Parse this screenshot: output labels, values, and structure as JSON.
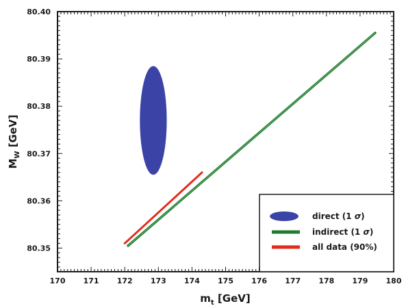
{
  "chart_data": {
    "type": "scatter",
    "title": "",
    "xlabel_main": "m",
    "xlabel_sub": "t",
    "xlabel_unit": " [GeV]",
    "ylabel_main": "M",
    "ylabel_sub": "W",
    "ylabel_unit": " [GeV]",
    "xlim": [
      170,
      180
    ],
    "ylim": [
      80.345,
      80.4
    ],
    "x_ticks": [
      "170",
      "171",
      "172",
      "173",
      "174",
      "175",
      "176",
      "177",
      "178",
      "179",
      "180"
    ],
    "y_ticks": [
      "80.35",
      "80.36",
      "80.37",
      "80.38",
      "80.39",
      "80.40"
    ],
    "y_tick_values": [
      80.35,
      80.36,
      80.37,
      80.38,
      80.39,
      80.4
    ],
    "grid": false,
    "legend_position": "bottom-right",
    "series": [
      {
        "name_prefix": "direct (1 ",
        "name_symbol": "σ",
        "name_suffix": ")",
        "shape": "ellipse",
        "color": "#3b44a6",
        "center": [
          172.85,
          80.377
        ],
        "half_width_x": 0.4,
        "half_height_y": 0.0115
      },
      {
        "name_prefix": "indirect (1 ",
        "name_symbol": "σ",
        "name_suffix": ")",
        "shape": "band",
        "color": "#1f7a2e",
        "points": [
          [
            172.1,
            80.3505
          ],
          [
            179.45,
            80.3955
          ]
        ]
      },
      {
        "name_prefix": "all data (90%)",
        "name_symbol": "",
        "name_suffix": "",
        "shape": "band",
        "color": "#e02c1c",
        "points": [
          [
            172.0,
            80.351
          ],
          [
            174.3,
            80.366
          ]
        ]
      }
    ]
  }
}
